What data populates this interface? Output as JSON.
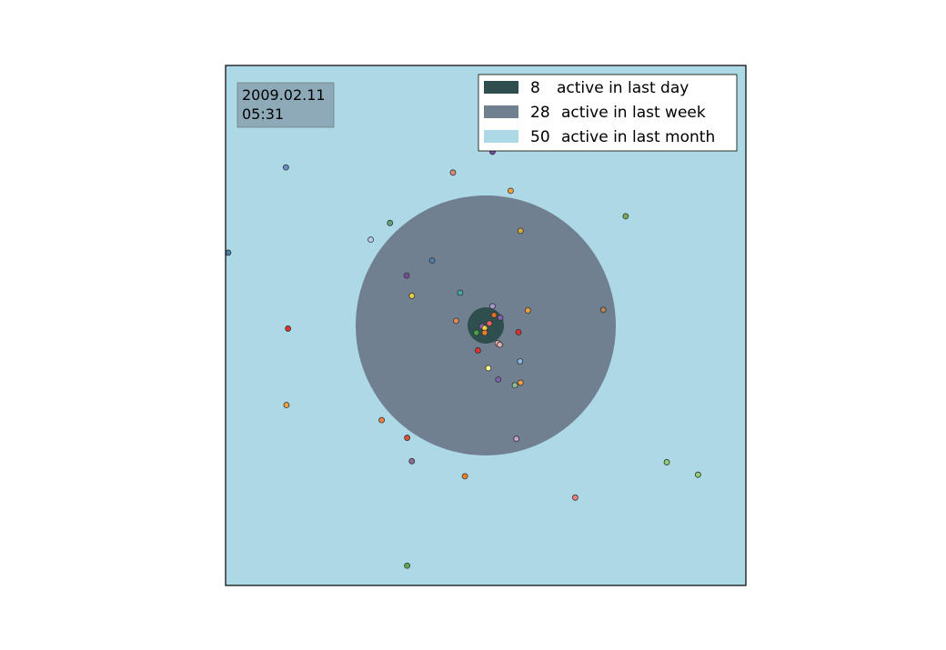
{
  "chart_data": {
    "type": "scatter",
    "xlim": [
      0,
      1
    ],
    "ylim": [
      0,
      1
    ],
    "grid": false,
    "axes_visible": false,
    "background": "#add8e6",
    "center": [
      0.5,
      0.5
    ],
    "timestamp": {
      "date": "2009.02.11",
      "time": "05:31",
      "box_color": "#8eaab8"
    },
    "zones": [
      {
        "count": "8",
        "label": "active in last day",
        "color": "#2f4f4f",
        "radius": 0.035
      },
      {
        "count": "28",
        "label": "active in last week",
        "color": "#708090",
        "radius": 0.25
      },
      {
        "count": "50",
        "label": "active in last month",
        "color": "#add8e6",
        "radius": null
      }
    ],
    "legend_position": "top-right",
    "points": [
      {
        "x": 0.116,
        "y": 0.804,
        "color": "#6a8fc4"
      },
      {
        "x": 0.005,
        "y": 0.64,
        "color": "#4a7fb0"
      },
      {
        "x": 0.12,
        "y": 0.494,
        "color": "#e03030"
      },
      {
        "x": 0.117,
        "y": 0.347,
        "color": "#f4a040"
      },
      {
        "x": 0.437,
        "y": 0.794,
        "color": "#e08b7a"
      },
      {
        "x": 0.513,
        "y": 0.834,
        "color": "#7a4ca0"
      },
      {
        "x": 0.548,
        "y": 0.759,
        "color": "#f4a040"
      },
      {
        "x": 0.316,
        "y": 0.697,
        "color": "#5fa87a"
      },
      {
        "x": 0.279,
        "y": 0.665,
        "color": "#b8cde6"
      },
      {
        "x": 0.567,
        "y": 0.682,
        "color": "#d4aa40"
      },
      {
        "x": 0.769,
        "y": 0.71,
        "color": "#7aaa58"
      },
      {
        "x": 0.397,
        "y": 0.625,
        "color": "#4a7fb0"
      },
      {
        "x": 0.348,
        "y": 0.596,
        "color": "#7a4ca0"
      },
      {
        "x": 0.358,
        "y": 0.557,
        "color": "#e8d040"
      },
      {
        "x": 0.451,
        "y": 0.563,
        "color": "#40a8a8"
      },
      {
        "x": 0.513,
        "y": 0.537,
        "color": "#a898d0"
      },
      {
        "x": 0.581,
        "y": 0.529,
        "color": "#f4a040"
      },
      {
        "x": 0.726,
        "y": 0.53,
        "color": "#b08850"
      },
      {
        "x": 0.516,
        "y": 0.52,
        "color": "#e07020"
      },
      {
        "x": 0.528,
        "y": 0.515,
        "color": "#8060b0"
      },
      {
        "x": 0.443,
        "y": 0.509,
        "color": "#e08b5a"
      },
      {
        "x": 0.507,
        "y": 0.504,
        "color": "#f06060"
      },
      {
        "x": 0.493,
        "y": 0.498,
        "color": "#9a60c0"
      },
      {
        "x": 0.498,
        "y": 0.495,
        "color": "#ffd040"
      },
      {
        "x": 0.482,
        "y": 0.486,
        "color": "#40a840"
      },
      {
        "x": 0.498,
        "y": 0.486,
        "color": "#f08020"
      },
      {
        "x": 0.563,
        "y": 0.487,
        "color": "#e03030"
      },
      {
        "x": 0.523,
        "y": 0.466,
        "color": "#f0b0b0"
      },
      {
        "x": 0.527,
        "y": 0.463,
        "color": "#e0b0b0"
      },
      {
        "x": 0.485,
        "y": 0.452,
        "color": "#e03030"
      },
      {
        "x": 0.566,
        "y": 0.431,
        "color": "#8ab8e0"
      },
      {
        "x": 0.505,
        "y": 0.418,
        "color": "#ffff90"
      },
      {
        "x": 0.524,
        "y": 0.396,
        "color": "#8060b0"
      },
      {
        "x": 0.556,
        "y": 0.385,
        "color": "#90c090"
      },
      {
        "x": 0.567,
        "y": 0.39,
        "color": "#f4a040"
      },
      {
        "x": 0.3,
        "y": 0.318,
        "color": "#f08040"
      },
      {
        "x": 0.349,
        "y": 0.284,
        "color": "#e05030"
      },
      {
        "x": 0.559,
        "y": 0.282,
        "color": "#c8a0d8"
      },
      {
        "x": 0.358,
        "y": 0.239,
        "color": "#907090"
      },
      {
        "x": 0.46,
        "y": 0.21,
        "color": "#f08020"
      },
      {
        "x": 0.848,
        "y": 0.237,
        "color": "#90d070"
      },
      {
        "x": 0.908,
        "y": 0.213,
        "color": "#90d070"
      },
      {
        "x": 0.672,
        "y": 0.169,
        "color": "#f08080"
      },
      {
        "x": 0.349,
        "y": 0.038,
        "color": "#60a850"
      }
    ]
  }
}
